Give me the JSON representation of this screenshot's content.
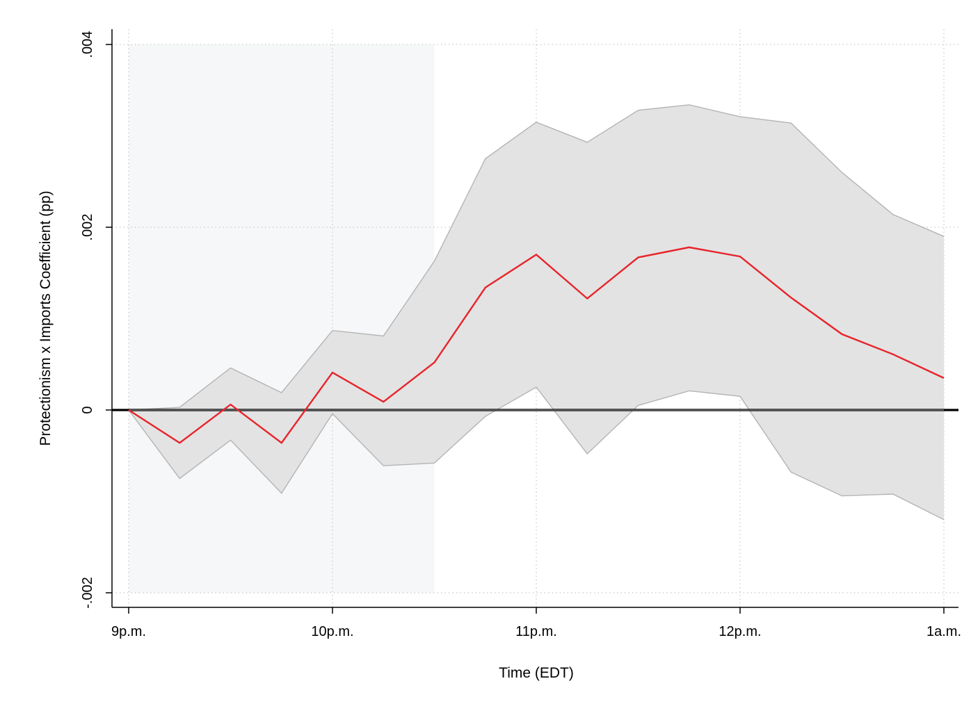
{
  "chart_data": {
    "type": "line",
    "title": "",
    "xlabel": "Time (EDT)",
    "ylabel": "Protectionism x Imports Coefficient (pp)",
    "x_ticks": [
      {
        "value": 0,
        "label": "9p.m."
      },
      {
        "value": 1,
        "label": "10p.m."
      },
      {
        "value": 2,
        "label": "11p.m."
      },
      {
        "value": 3,
        "label": "12p.m."
      },
      {
        "value": 4,
        "label": "1a.m."
      }
    ],
    "y_ticks": [
      {
        "value": -0.002,
        "label": "-.002"
      },
      {
        "value": 0,
        "label": "0"
      },
      {
        "value": 0.002,
        "label": ".002"
      },
      {
        "value": 0.004,
        "label": ".004"
      }
    ],
    "xlim": [
      0,
      4
    ],
    "ylim": [
      -0.002,
      0.004
    ],
    "x": [
      0,
      0.25,
      0.5,
      0.75,
      1,
      1.25,
      1.5,
      1.75,
      2,
      2.25,
      2.5,
      2.75,
      3,
      3.25,
      3.5,
      3.75,
      4
    ],
    "series": [
      {
        "type": "line",
        "values": [
          0,
          -0.00036,
          6e-05,
          -0.00036,
          0.00041,
          9e-05,
          0.00052,
          0.00134,
          0.0017,
          0.00122,
          0.00167,
          0.00178,
          0.00168,
          0.00123,
          0.00083,
          0.00061,
          0.00035
        ],
        "color": "#e8232a"
      },
      {
        "type": "confidence_band",
        "upper": [
          0,
          3e-05,
          0.00046,
          0.00019,
          0.00087,
          0.00081,
          0.00163,
          0.00275,
          0.00315,
          0.00293,
          0.00328,
          0.00334,
          0.00321,
          0.00314,
          0.0026,
          0.00214,
          0.0019
        ],
        "lower": [
          0,
          -0.00075,
          -0.00033,
          -0.00091,
          -4e-05,
          -0.00061,
          -0.00058,
          -7e-05,
          0.00025,
          -0.00048,
          5e-05,
          0.00021,
          0.00015,
          -0.00068,
          -0.00094,
          -0.00092,
          -0.0012
        ],
        "color": "#e1e1e1"
      }
    ],
    "shaded_region": {
      "x_start": 0,
      "x_end": 1.5,
      "color": "#f6f7f8"
    },
    "reference_line": {
      "y": 0,
      "color": "#000000"
    },
    "grid": true,
    "legend": "none"
  }
}
